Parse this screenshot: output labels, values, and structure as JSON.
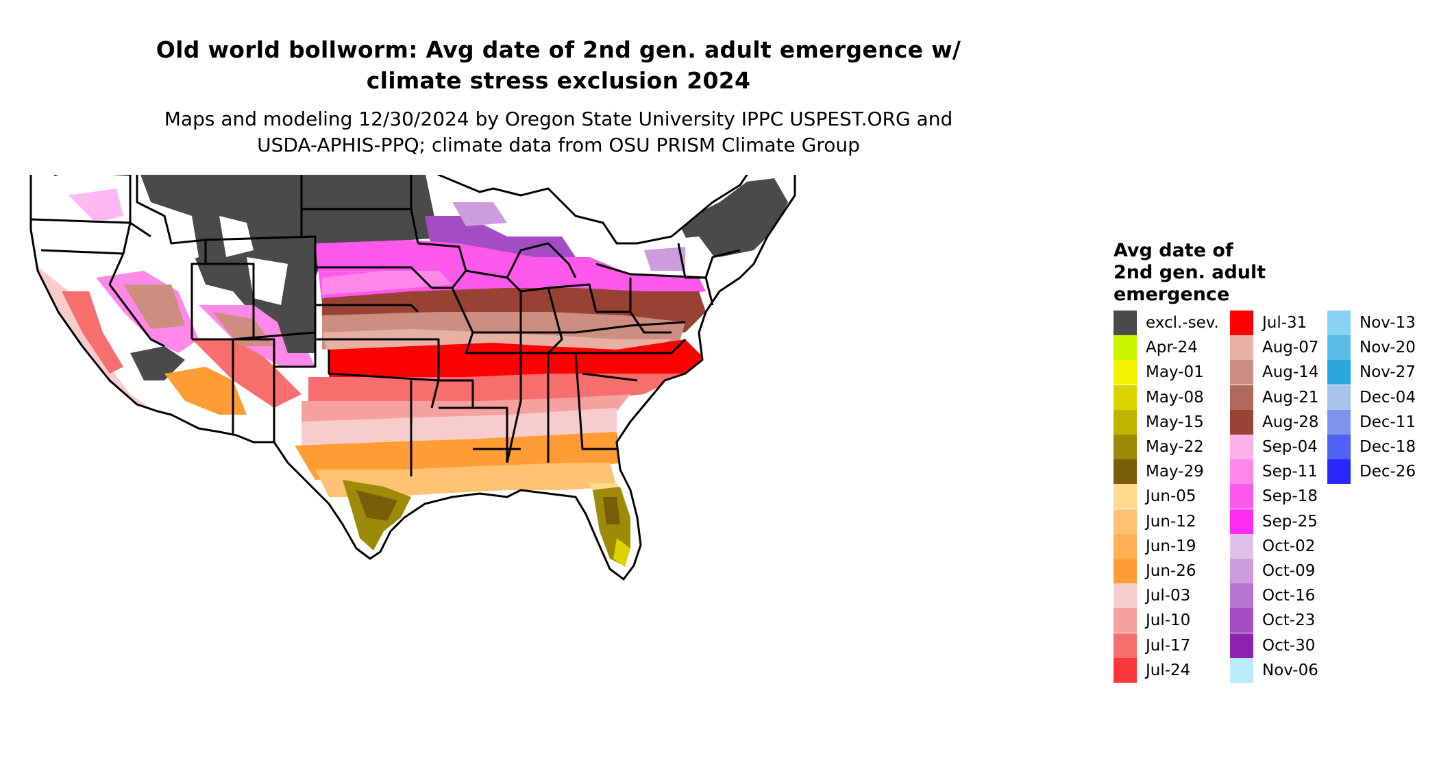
{
  "title": {
    "line1": "Old world bollworm: Avg date of 2nd gen. adult emergence w/",
    "line2": "climate stress exclusion 2024"
  },
  "subtitle": {
    "line1": "Maps and modeling 12/30/2024 by Oregon State University IPPC USPEST.ORG and",
    "line2": "USDA-APHIS-PPQ; climate data from OSU PRISM Climate Group"
  },
  "legend": {
    "title_lines": [
      "Avg date of",
      "2nd gen. adult",
      "emergence"
    ],
    "columns": [
      [
        {
          "label": "excl.-sev.",
          "color": "#4a4a4a"
        },
        {
          "label": "Apr-24",
          "color": "#c8f400"
        },
        {
          "label": "May-01",
          "color": "#f4f400"
        },
        {
          "label": "May-08",
          "color": "#dcd400"
        },
        {
          "label": "May-15",
          "color": "#c0b400"
        },
        {
          "label": "May-22",
          "color": "#9c8a08"
        },
        {
          "label": "May-29",
          "color": "#7a5c0a"
        },
        {
          "label": "Jun-05",
          "color": "#ffd98e"
        },
        {
          "label": "Jun-12",
          "color": "#ffc272"
        },
        {
          "label": "Jun-19",
          "color": "#ffb054"
        },
        {
          "label": "Jun-26",
          "color": "#ff9c34"
        },
        {
          "label": "Jul-03",
          "color": "#f7cccc"
        },
        {
          "label": "Jul-10",
          "color": "#f7a0a0"
        },
        {
          "label": "Jul-17",
          "color": "#f76e6e"
        },
        {
          "label": "Jul-24",
          "color": "#f83838"
        }
      ],
      [
        {
          "label": "Jul-31",
          "color": "#ff0000"
        },
        {
          "label": "Aug-07",
          "color": "#e8b0a4"
        },
        {
          "label": "Aug-14",
          "color": "#cc8e80"
        },
        {
          "label": "Aug-21",
          "color": "#b06a5c"
        },
        {
          "label": "Aug-28",
          "color": "#984234"
        },
        {
          "label": "Sep-04",
          "color": "#ffb0e8"
        },
        {
          "label": "Sep-11",
          "color": "#ff88e8"
        },
        {
          "label": "Sep-18",
          "color": "#ff58ec"
        },
        {
          "label": "Sep-25",
          "color": "#ff2cf4"
        },
        {
          "label": "Oct-02",
          "color": "#e0c0e8"
        },
        {
          "label": "Oct-09",
          "color": "#cc9cdc"
        },
        {
          "label": "Oct-16",
          "color": "#b874d0"
        },
        {
          "label": "Oct-23",
          "color": "#a44cc4"
        },
        {
          "label": "Oct-30",
          "color": "#8c24b0"
        },
        {
          "label": "Nov-06",
          "color": "#b8ecfc"
        }
      ],
      [
        {
          "label": "Nov-13",
          "color": "#88d4f4"
        },
        {
          "label": "Nov-20",
          "color": "#58bce8"
        },
        {
          "label": "Nov-27",
          "color": "#28a8dc"
        },
        {
          "label": "Dec-04",
          "color": "#a8c4e8"
        },
        {
          "label": "Dec-11",
          "color": "#7c94ec"
        },
        {
          "label": "Dec-18",
          "color": "#5060f4"
        },
        {
          "label": "Dec-26",
          "color": "#2828fc"
        }
      ]
    ]
  }
}
